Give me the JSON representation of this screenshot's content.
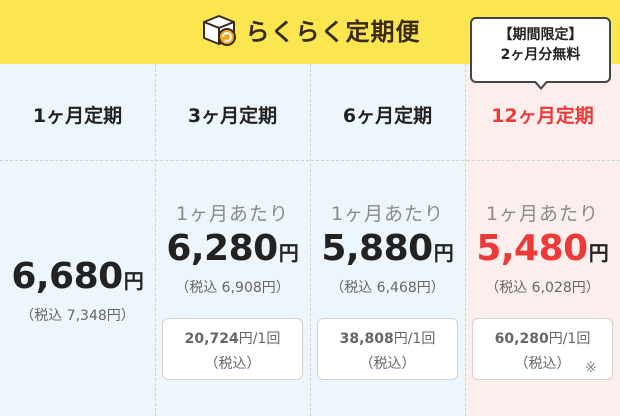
{
  "header": {
    "title": "らくらく定期便",
    "icon": "box-refresh-icon",
    "colors": {
      "bg": "#fbe650",
      "text": "#3a2a1c"
    }
  },
  "promo": {
    "line1": "【期間限定】",
    "line2": "2ヶ月分無料"
  },
  "colors": {
    "accent_red": "#ec3a3a",
    "col_bg": "#eef6fd",
    "col_bg_highlight": "#fdeeee"
  },
  "plans": [
    {
      "label": "1ヶ月定期",
      "price": "6,680",
      "yen": "円",
      "tax_included": "（税込 7,348円）"
    },
    {
      "label": "3ヶ月定期",
      "per_month": "1ヶ月あたり",
      "price": "6,280",
      "yen": "円",
      "tax_included": "（税込 6,908円）",
      "total_amount": "20,724",
      "total_unit": "円/1回",
      "total_tax": "（税込）"
    },
    {
      "label": "6ヶ月定期",
      "per_month": "1ヶ月あたり",
      "price": "5,880",
      "yen": "円",
      "tax_included": "（税込 6,468円）",
      "total_amount": "38,808",
      "total_unit": "円/1回",
      "total_tax": "（税込）"
    },
    {
      "label": "12ヶ月定期",
      "per_month": "1ヶ月あたり",
      "price": "5,480",
      "yen": "円",
      "tax_included": "（税込 6,028円）",
      "total_amount": "60,280",
      "total_unit": "円/1回",
      "total_tax": "（税込）",
      "note_mark": "※"
    }
  ]
}
